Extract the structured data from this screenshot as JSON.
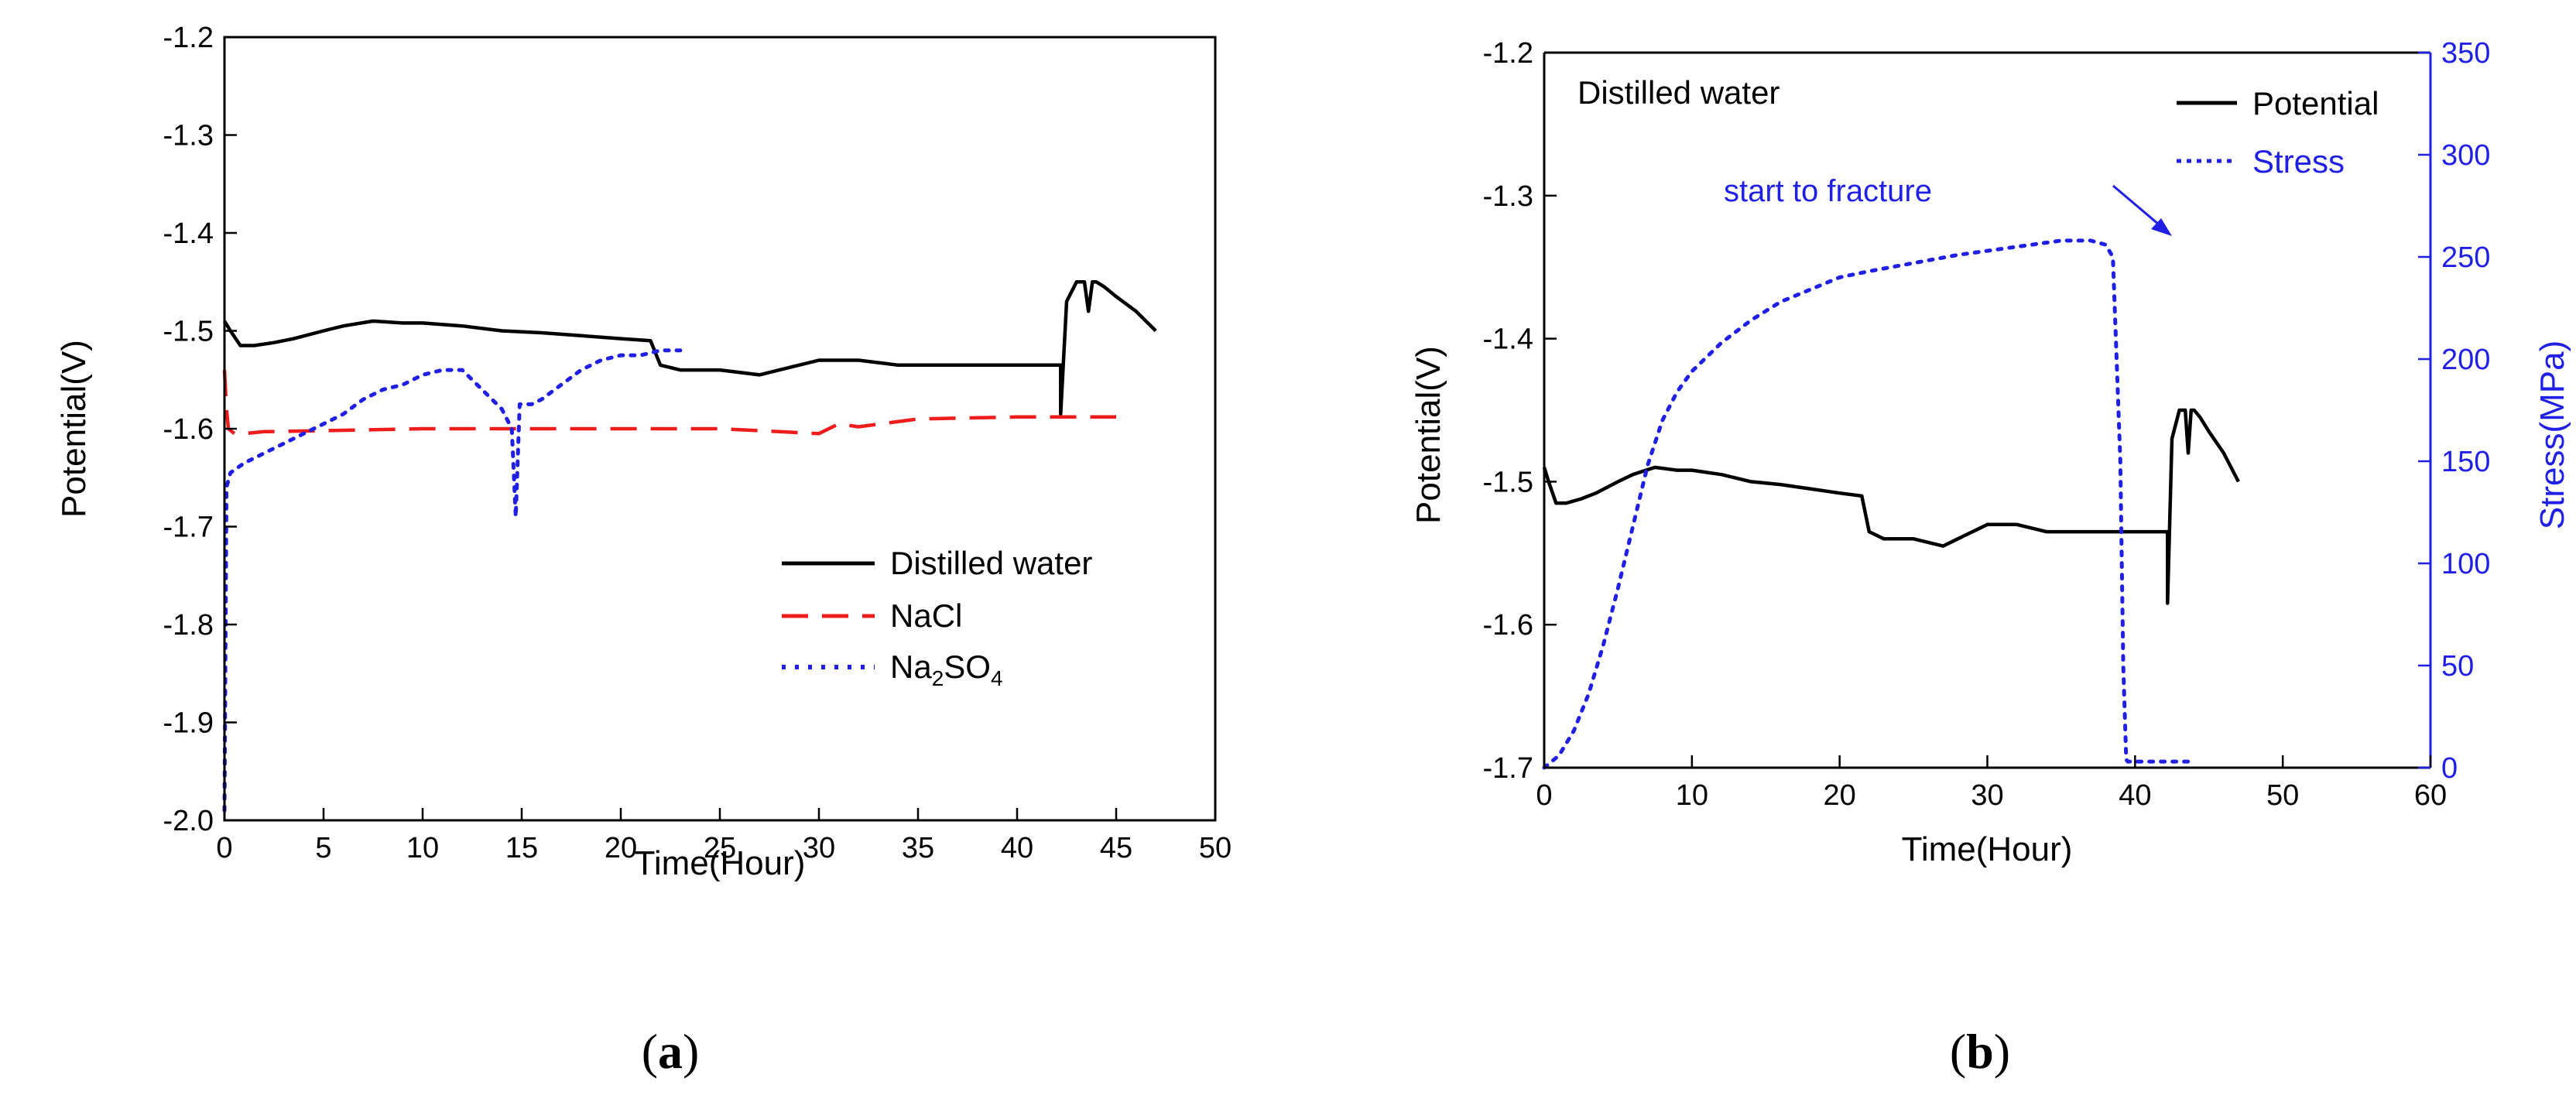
{
  "chart_data": [
    {
      "id": "a",
      "type": "line",
      "panel_label_open": "(",
      "panel_label_letter": "a",
      "panel_label_close": ")",
      "xlabel": "Time(Hour)",
      "ylabel": "Potential(V)",
      "xlim": [
        0,
        50
      ],
      "ylim": [
        -2.0,
        -1.2
      ],
      "xticks": [
        "0",
        "5",
        "10",
        "15",
        "20",
        "25",
        "30",
        "35",
        "40",
        "45",
        "50"
      ],
      "yticks": [
        "-2.0",
        "-1.9",
        "-1.8",
        "-1.7",
        "-1.6",
        "-1.5",
        "-1.4",
        "-1.3",
        "-1.2"
      ],
      "legend_position": "lower-right",
      "series": [
        {
          "name": "Distilled water",
          "style": "solid",
          "color": "#000000",
          "x": [
            0,
            0.3,
            0.8,
            1.5,
            2.5,
            3.5,
            5,
            6,
            7.5,
            9,
            10,
            12,
            14,
            16,
            18,
            20,
            21.5,
            22,
            23,
            25,
            27,
            28,
            30,
            32,
            34,
            36,
            38,
            40,
            42.2,
            42.2,
            42.5,
            43.0,
            43.4,
            43.6,
            43.8,
            44.0,
            44.4,
            45,
            46,
            47
          ],
          "y": [
            -1.49,
            -1.5,
            -1.515,
            -1.515,
            -1.512,
            -1.508,
            -1.5,
            -1.495,
            -1.49,
            -1.492,
            -1.492,
            -1.495,
            -1.5,
            -1.502,
            -1.505,
            -1.508,
            -1.51,
            -1.535,
            -1.54,
            -1.54,
            -1.545,
            -1.54,
            -1.53,
            -1.53,
            -1.535,
            -1.535,
            -1.535,
            -1.535,
            -1.535,
            -1.585,
            -1.47,
            -1.45,
            -1.45,
            -1.48,
            -1.45,
            -1.45,
            -1.455,
            -1.465,
            -1.48,
            -1.5
          ]
        },
        {
          "name": "NaCl",
          "style": "dashed",
          "color": "#ee1c1c",
          "x": [
            0,
            0.1,
            0.2,
            0.5,
            1,
            2,
            5,
            10,
            15,
            20,
            25,
            30,
            31,
            32,
            35,
            40,
            45
          ],
          "y": [
            -1.54,
            -1.58,
            -1.6,
            -1.605,
            -1.605,
            -1.603,
            -1.602,
            -1.6,
            -1.6,
            -1.6,
            -1.6,
            -1.605,
            -1.595,
            -1.598,
            -1.59,
            -1.588,
            -1.588
          ]
        },
        {
          "name": "Na2SO4",
          "legend_base": "Na",
          "legend_sub1": "2",
          "legend_mid": "SO",
          "legend_sub2": "4",
          "style": "dotted",
          "color": "#1f1fe6",
          "x": [
            0,
            0.1,
            0.3,
            1,
            2,
            3,
            4,
            5,
            6,
            7,
            8,
            9,
            10,
            11,
            12,
            13,
            14,
            14.5,
            14.7,
            14.9,
            15.5,
            16,
            17,
            18,
            19,
            20,
            21,
            22,
            23
          ],
          "y": [
            -1.99,
            -1.66,
            -1.645,
            -1.635,
            -1.625,
            -1.615,
            -1.605,
            -1.595,
            -1.585,
            -1.57,
            -1.56,
            -1.555,
            -1.545,
            -1.54,
            -1.54,
            -1.56,
            -1.58,
            -1.6,
            -1.69,
            -1.575,
            -1.575,
            -1.57,
            -1.555,
            -1.54,
            -1.53,
            -1.525,
            -1.525,
            -1.52,
            -1.52
          ]
        }
      ]
    },
    {
      "id": "b",
      "type": "line",
      "panel_label_open": "(",
      "panel_label_letter": "b",
      "panel_label_close": ")",
      "title_annotation": "Distilled water",
      "xlabel": "Time(Hour)",
      "ylabel": "Potential(V)",
      "y2label": "Stress(MPa)",
      "xlim": [
        0,
        60
      ],
      "ylim": [
        -1.7,
        -1.2
      ],
      "y2lim": [
        0,
        350
      ],
      "xticks": [
        "0",
        "10",
        "20",
        "30",
        "40",
        "50",
        "60"
      ],
      "yticks": [
        "-1.7",
        "-1.6",
        "-1.5",
        "-1.4",
        "-1.3",
        "-1.2"
      ],
      "y2ticks": [
        "0",
        "50",
        "100",
        "150",
        "200",
        "250",
        "300",
        "350"
      ],
      "legend_position": "top-right",
      "annotation": "start to fracture",
      "series": [
        {
          "name": "Potential",
          "style": "solid",
          "color": "#000000",
          "axis": "left",
          "x": [
            0,
            0.3,
            0.8,
            1.5,
            2.5,
            3.5,
            5,
            6,
            7.5,
            9,
            10,
            12,
            14,
            16,
            18,
            20,
            21.5,
            22,
            23,
            25,
            27,
            28,
            30,
            32,
            34,
            36,
            38,
            40,
            42.2,
            42.2,
            42.5,
            43.0,
            43.4,
            43.6,
            43.8,
            44.0,
            44.4,
            45,
            46,
            47
          ],
          "y": [
            -1.49,
            -1.5,
            -1.515,
            -1.515,
            -1.512,
            -1.508,
            -1.5,
            -1.495,
            -1.49,
            -1.492,
            -1.492,
            -1.495,
            -1.5,
            -1.502,
            -1.505,
            -1.508,
            -1.51,
            -1.535,
            -1.54,
            -1.54,
            -1.545,
            -1.54,
            -1.53,
            -1.53,
            -1.535,
            -1.535,
            -1.535,
            -1.535,
            -1.535,
            -1.585,
            -1.47,
            -1.45,
            -1.45,
            -1.48,
            -1.45,
            -1.45,
            -1.455,
            -1.465,
            -1.48,
            -1.5
          ]
        },
        {
          "name": "Stress",
          "style": "dotted",
          "color": "#1f1fe6",
          "axis": "right",
          "x": [
            0,
            1,
            2,
            3,
            4,
            5,
            6,
            7,
            8,
            9,
            10,
            12,
            14,
            16,
            18,
            20,
            22,
            25,
            28,
            30,
            33,
            35,
            37,
            38,
            38.5,
            39,
            39.2,
            39.4,
            39.5,
            40,
            42,
            44
          ],
          "y": [
            0,
            6,
            18,
            36,
            60,
            88,
            118,
            148,
            170,
            184,
            194,
            208,
            219,
            228,
            234,
            240,
            243,
            247,
            251,
            253,
            256,
            258,
            258,
            256,
            250,
            150,
            50,
            4,
            3,
            3,
            3,
            3
          ]
        }
      ]
    }
  ]
}
